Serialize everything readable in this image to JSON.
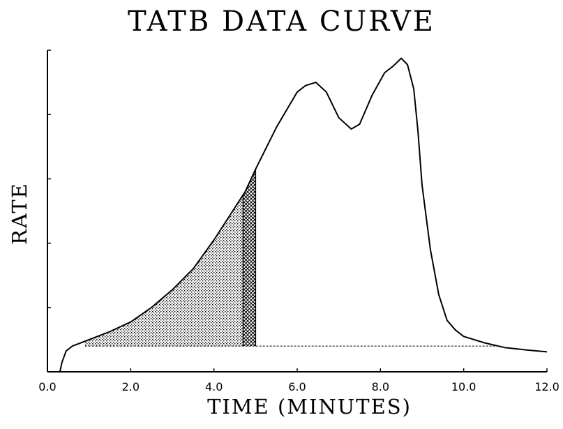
{
  "chart_data": {
    "type": "line",
    "title": "TATB DATA CURVE",
    "xlabel": "TIME (MINUTES)",
    "ylabel": "RATE",
    "xlim": [
      0,
      12
    ],
    "ylim": [
      0,
      1
    ],
    "grid": false,
    "x_tick_labels": [
      "0.0",
      "2.0",
      "4.0",
      "6.0",
      "8.0",
      "10.0",
      "12.0"
    ],
    "x_ticks": [
      0,
      2,
      4,
      6,
      8,
      10,
      12
    ],
    "y_ticks": [
      0,
      0.2,
      0.4,
      0.6,
      0.8,
      1.0
    ],
    "baseline": 0.08,
    "shaded_region": {
      "x_from": 0.9,
      "x_to": 4.7,
      "pattern": "dotted"
    },
    "crosshatch_region": {
      "x_from": 4.7,
      "x_to": 5.0,
      "pattern": "crosshatch"
    },
    "series": [
      {
        "x": [
          0.3,
          0.35,
          0.45,
          0.6,
          0.8,
          1.0,
          1.5,
          2.0,
          2.5,
          3.0,
          3.5,
          4.0,
          4.5,
          4.75,
          5.0,
          5.5,
          6.0,
          6.2,
          6.45,
          6.7,
          7.0,
          7.3,
          7.5,
          7.8,
          8.1,
          8.3,
          8.5,
          8.65,
          8.8,
          8.9,
          9.0,
          9.2,
          9.4,
          9.6,
          9.8,
          10.0,
          10.5,
          11.0,
          11.5,
          12.0
        ],
        "y": [
          0.0,
          0.03,
          0.065,
          0.08,
          0.09,
          0.1,
          0.125,
          0.155,
          0.2,
          0.255,
          0.32,
          0.41,
          0.51,
          0.56,
          0.63,
          0.76,
          0.87,
          0.89,
          0.9,
          0.87,
          0.79,
          0.755,
          0.77,
          0.86,
          0.93,
          0.95,
          0.975,
          0.955,
          0.88,
          0.75,
          0.58,
          0.38,
          0.24,
          0.16,
          0.13,
          0.11,
          0.09,
          0.075,
          0.068,
          0.062
        ]
      }
    ]
  }
}
